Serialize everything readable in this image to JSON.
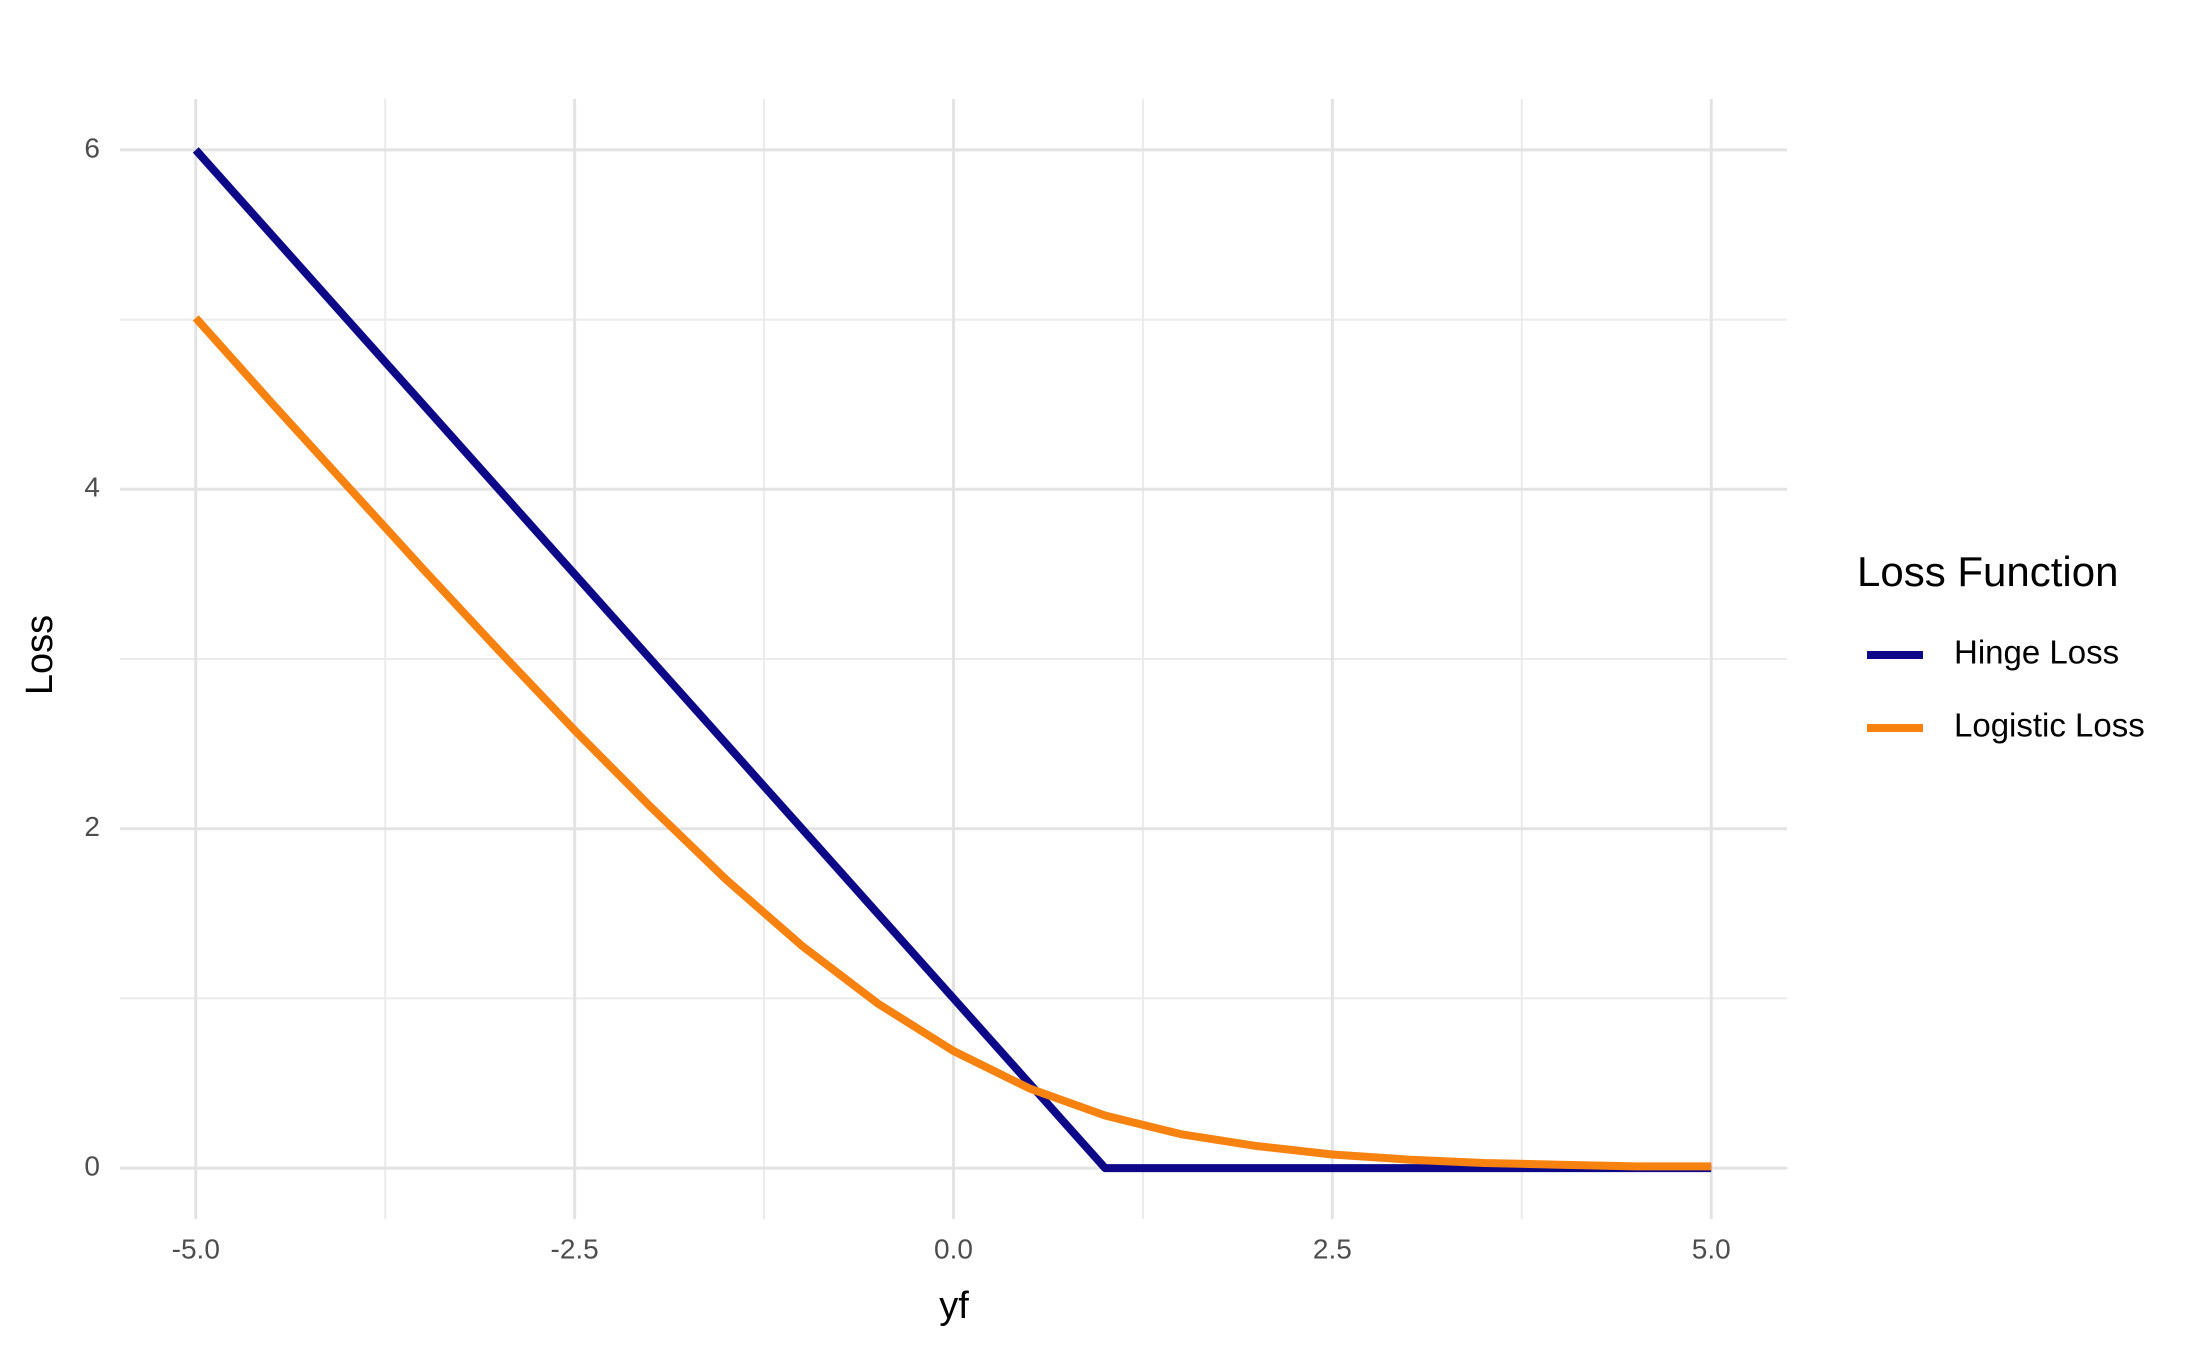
{
  "chart_data": {
    "type": "line",
    "x_label": "yf",
    "y_label": "Loss",
    "legend_title": "Loss Function",
    "legend_position": "right",
    "x": [
      -5,
      -4.5,
      -4,
      -3.5,
      -3,
      -2.5,
      -2,
      -1.5,
      -1,
      -0.5,
      0,
      0.5,
      1,
      1.5,
      2,
      2.5,
      3,
      3.5,
      4,
      4.5,
      5
    ],
    "series": [
      {
        "name": "Hinge Loss",
        "color": "#0d0887",
        "values": [
          6,
          5.5,
          5,
          4.5,
          4,
          3.5,
          3,
          2.5,
          2,
          1.5,
          1,
          0.5,
          0,
          0,
          0,
          0,
          0,
          0,
          0,
          0,
          0
        ]
      },
      {
        "name": "Logistic Loss",
        "color": "#f8820f",
        "values": [
          5.01,
          4.51,
          4.02,
          3.53,
          3.05,
          2.58,
          2.13,
          1.7,
          1.31,
          0.97,
          0.69,
          0.47,
          0.31,
          0.2,
          0.13,
          0.08,
          0.05,
          0.03,
          0.02,
          0.01,
          0.01
        ]
      }
    ],
    "xlim": [
      -5.5,
      5.5
    ],
    "ylim": [
      -0.3,
      6.3
    ],
    "xticks": [
      {
        "value": -5,
        "label": "-5.0"
      },
      {
        "value": -2.5,
        "label": "-2.5"
      },
      {
        "value": 0,
        "label": "0.0"
      },
      {
        "value": 2.5,
        "label": "2.5"
      },
      {
        "value": 5,
        "label": "5.0"
      }
    ],
    "yticks": [
      0,
      2,
      4,
      6
    ],
    "x_minor_ticks": [
      -3.75,
      -1.25,
      1.25,
      3.75
    ],
    "y_minor_ticks": [
      1,
      3,
      5
    ],
    "grid": true
  }
}
